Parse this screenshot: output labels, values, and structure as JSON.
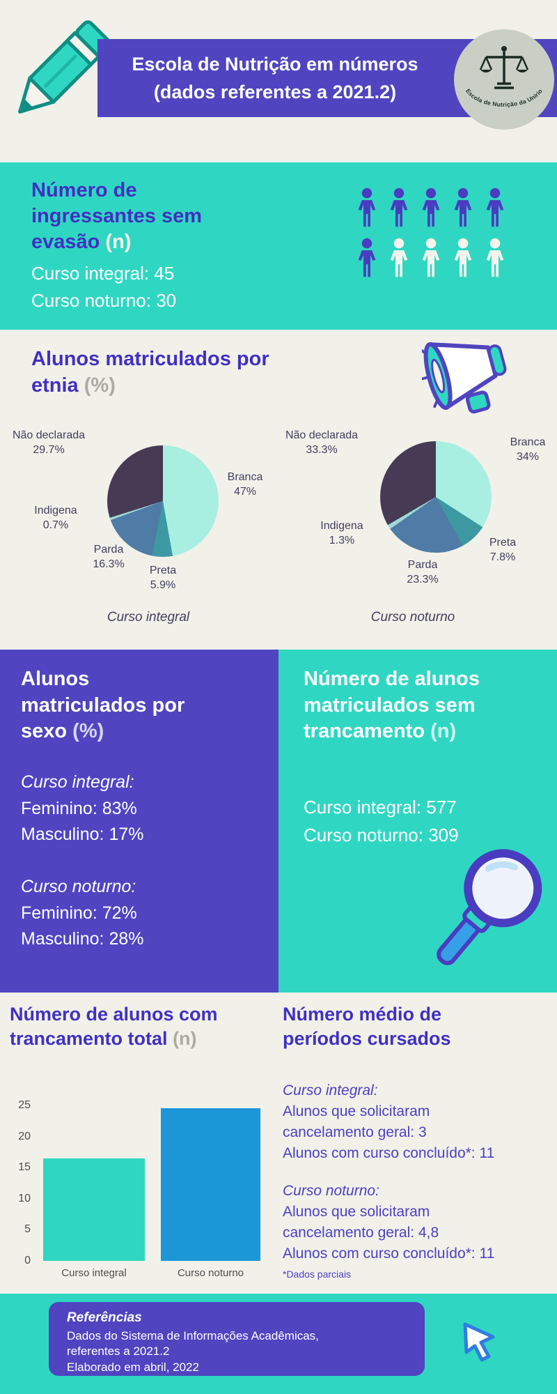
{
  "colors": {
    "background": "#f2f1e9",
    "teal": "#2fd7c2",
    "purple": "#5044c0",
    "heading_purple": "#4130c2",
    "bar_blue": "#1b97d8"
  },
  "header": {
    "title_line1": "Escola de Nutrição em números",
    "title_line2": "(dados referentes a 2021.2)",
    "logo_text": "Escola de Nutrição da Unirio"
  },
  "ingressantes": {
    "heading": "Número de ingressantes sem evasão",
    "suffix": "(n)",
    "lines": [
      "Curso integral: 45",
      "Curso noturno: 30"
    ],
    "icons": {
      "total": 10,
      "filled": 6,
      "filled_color": "#4a3cc0",
      "empty_color": "#f4f3ec"
    }
  },
  "etnia": {
    "heading": "Alunos matriculados por etnia",
    "suffix": "(%)"
  },
  "sexo": {
    "heading": "Alunos matriculados por sexo",
    "suffix": "(%)",
    "groups": [
      {
        "title": "Curso integral:",
        "lines": [
          "Feminino: 83%",
          "Masculino: 17%"
        ]
      },
      {
        "title": "Curso noturno:",
        "lines": [
          "Feminino: 72%",
          "Masculino: 28%"
        ]
      }
    ]
  },
  "trancamento_sem": {
    "heading": "Número de alunos matriculados sem trancamento",
    "suffix": "(n)",
    "lines": [
      "Curso integral: 577",
      "Curso noturno: 309"
    ]
  },
  "trancamento_total": {
    "heading": "Número de alunos com trancamento total",
    "suffix": "(n)"
  },
  "periodos": {
    "heading": "Número médio de períodos cursados",
    "groups": [
      {
        "title": "Curso integral:",
        "lines": [
          "Alunos que solicitaram",
          "cancelamento geral: 3",
          "Alunos com curso concluído*: 11"
        ]
      },
      {
        "title": "Curso noturno:",
        "lines": [
          "Alunos que solicitaram",
          "cancelamento geral: 4,8",
          "Alunos com curso concluído*: 11"
        ]
      }
    ],
    "note": "*Dados parciais"
  },
  "footer": {
    "title": "Referências",
    "lines": [
      "Dados do Sistema de Informações Acadêmicas,",
      "referentes a 2021.2",
      "Elaborado em abril, 2022"
    ]
  },
  "chart_data": [
    {
      "type": "pie",
      "title": "Curso integral",
      "slices": [
        {
          "label": "Branca",
          "pct": 47,
          "display": "47%",
          "color": "#a8efe2"
        },
        {
          "label": "Preta",
          "pct": 5.9,
          "display": "5.9%",
          "color": "#3d99a1"
        },
        {
          "label": "Parda",
          "pct": 16.3,
          "display": "16.3%",
          "color": "#4e7ca6"
        },
        {
          "label": "Indigena",
          "pct": 0.7,
          "display": "0.7%",
          "color": "#9fd8d8"
        },
        {
          "label": "Não declarada",
          "pct": 29.7,
          "display": "29.7%",
          "color": "#463a55"
        }
      ]
    },
    {
      "type": "pie",
      "title": "Curso noturno",
      "slices": [
        {
          "label": "Branca",
          "pct": 34,
          "display": "34%",
          "color": "#a8efe2"
        },
        {
          "label": "Preta",
          "pct": 7.8,
          "display": "7.8%",
          "color": "#3d99a1"
        },
        {
          "label": "Parda",
          "pct": 23.3,
          "display": "23.3%",
          "color": "#4e7ca6"
        },
        {
          "label": "Indigena",
          "pct": 1.3,
          "display": "1.3%",
          "color": "#9fd8d8"
        },
        {
          "label": "Não declarada",
          "pct": 33.3,
          "display": "33.3%",
          "color": "#463a55"
        }
      ]
    },
    {
      "type": "bar",
      "title": "Número de alunos com trancamento total (n)",
      "categories": [
        "Curso integral",
        "Curso noturno"
      ],
      "values": [
        16.5,
        24.5
      ],
      "colors": [
        "#2fd7c2",
        "#1b97d8"
      ],
      "yticks": [
        0,
        5,
        10,
        15,
        20,
        25
      ],
      "ylim": [
        0,
        25
      ]
    }
  ]
}
